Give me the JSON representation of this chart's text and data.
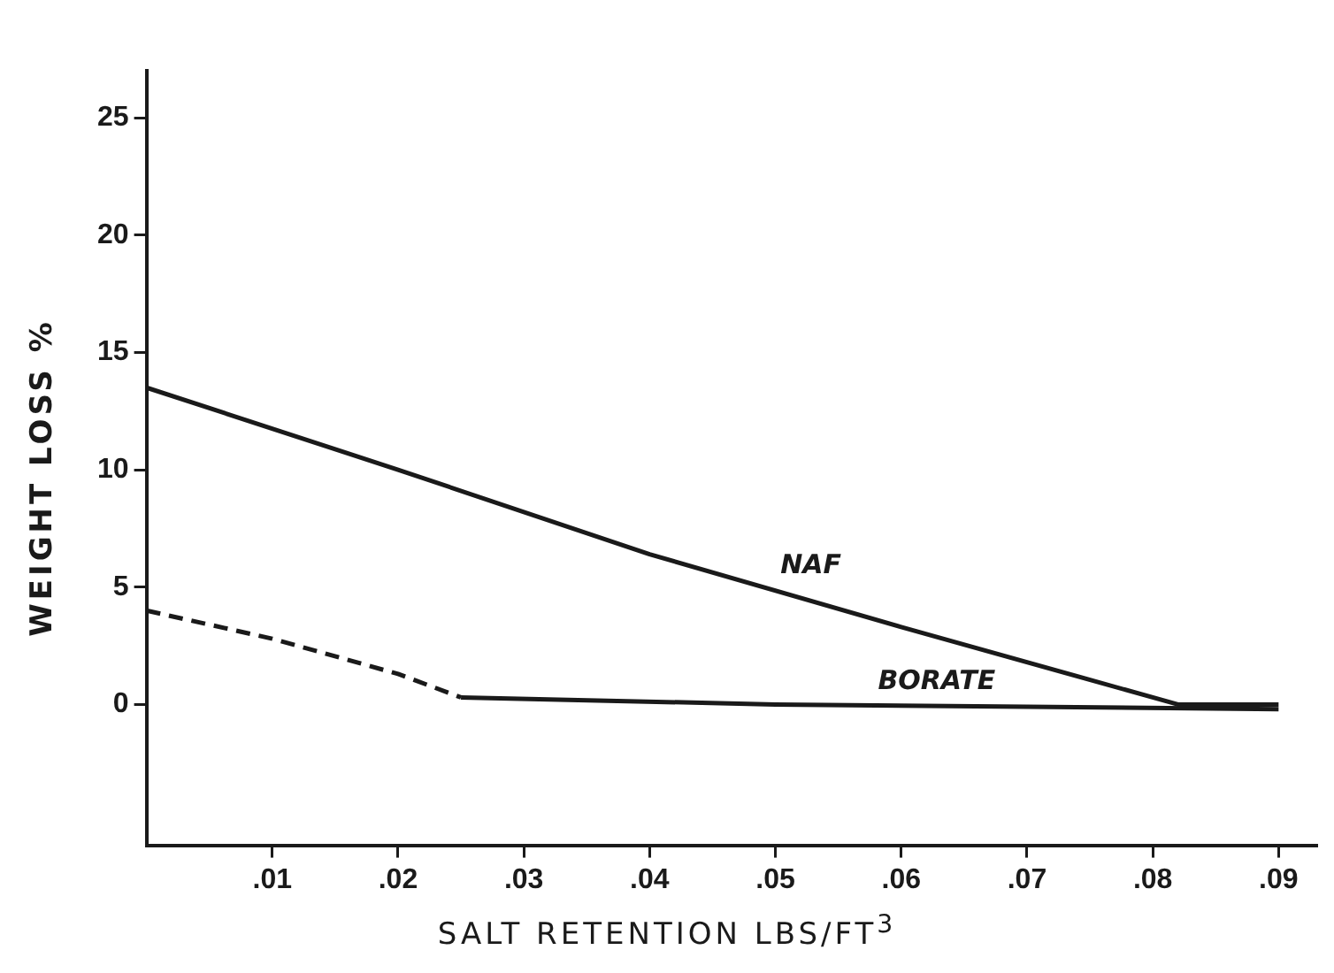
{
  "chart_data": {
    "type": "line",
    "xlabel": "SALT RETENTION LBS/FT$^{3}$",
    "ylabel": "WEIGHT LOSS %",
    "xlim": [
      0,
      0.093
    ],
    "ylim": [
      -6,
      27
    ],
    "xticks": [
      {
        "value": 0.01,
        "label": ".01"
      },
      {
        "value": 0.02,
        "label": ".02"
      },
      {
        "value": 0.03,
        "label": ".03"
      },
      {
        "value": 0.04,
        "label": ".04"
      },
      {
        "value": 0.05,
        "label": ".05"
      },
      {
        "value": 0.06,
        "label": ".06"
      },
      {
        "value": 0.07,
        "label": ".07"
      },
      {
        "value": 0.08,
        "label": ".08"
      },
      {
        "value": 0.09,
        "label": ".09"
      }
    ],
    "yticks": [
      0,
      5,
      10,
      15,
      20,
      25
    ],
    "grid": false,
    "legend": false,
    "marker": "none",
    "series": [
      {
        "name": "NAF",
        "color": "#1a1a1a",
        "x": [
          0,
          0.02,
          0.04,
          0.06,
          0.082,
          0.09
        ],
        "values": [
          13.5,
          10,
          6.4,
          3.3,
          0,
          0
        ],
        "line_style": "solid"
      },
      {
        "color": "#1a1a1a",
        "x": [
          0,
          0.01,
          0.02,
          0.025
        ],
        "values": [
          4,
          2.8,
          1.3,
          0.3
        ],
        "line_style": "dashed"
      },
      {
        "name": "BORATE",
        "color": "#1a1a1a",
        "x": [
          0.025,
          0.05,
          0.07,
          0.09
        ],
        "values": [
          0.3,
          0,
          -0.1,
          -0.2
        ],
        "line_style": "solid"
      }
    ]
  }
}
